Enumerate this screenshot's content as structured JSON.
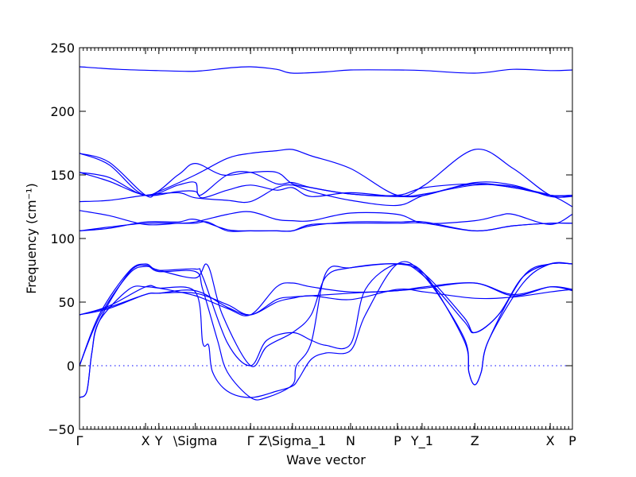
{
  "chart_data": {
    "type": "line",
    "xlabel": "Wave vector",
    "ylabel": "Frequency (cm⁻¹)",
    "ylim": [
      -50,
      250
    ],
    "yticks": [
      -50,
      0,
      50,
      100,
      150,
      200,
      250
    ],
    "xlim": [
      0,
      1
    ],
    "grid": false,
    "reference_line": {
      "y": 0,
      "style": "dotted"
    },
    "x_ticks": [
      {
        "label": "Γ",
        "x": 0.0
      },
      {
        "label": "X",
        "x": 0.134
      },
      {
        "label": "Y",
        "x": 0.161
      },
      {
        "label": "\\Sigma",
        "x": 0.235
      },
      {
        "label": "Γ",
        "x": 0.347
      },
      {
        "label": "Z\\Sigma_1",
        "x": 0.432
      },
      {
        "label": "N",
        "x": 0.55
      },
      {
        "label": "P",
        "x": 0.645
      },
      {
        "label": "Y_1",
        "x": 0.695
      },
      {
        "label": "Z",
        "x": 0.802
      },
      {
        "label": "X",
        "x": 0.955
      },
      {
        "label": "P",
        "x": 1.0
      }
    ],
    "series": [
      {
        "values": [
          [
            0,
            235
          ],
          [
            0.08,
            233
          ],
          [
            0.16,
            232
          ],
          [
            0.235,
            231.5
          ],
          [
            0.3,
            234
          ],
          [
            0.347,
            235
          ],
          [
            0.4,
            233
          ],
          [
            0.432,
            230
          ],
          [
            0.5,
            231
          ],
          [
            0.55,
            232.5
          ],
          [
            0.645,
            232.5
          ],
          [
            0.7,
            232
          ],
          [
            0.802,
            230
          ],
          [
            0.88,
            233
          ],
          [
            0.955,
            232
          ],
          [
            1,
            232.5
          ]
        ]
      },
      {
        "values": [
          [
            0,
            167
          ],
          [
            0.06,
            160
          ],
          [
            0.134,
            134
          ],
          [
            0.161,
            137
          ],
          [
            0.235,
            150
          ],
          [
            0.3,
            163
          ],
          [
            0.347,
            167
          ],
          [
            0.4,
            169
          ],
          [
            0.432,
            170
          ],
          [
            0.47,
            165
          ],
          [
            0.55,
            155
          ],
          [
            0.645,
            134
          ],
          [
            0.7,
            142
          ],
          [
            0.802,
            170
          ],
          [
            0.88,
            155
          ],
          [
            0.955,
            134
          ],
          [
            1,
            134
          ]
        ]
      },
      {
        "values": [
          [
            0,
            167
          ],
          [
            0.06,
            158
          ],
          [
            0.134,
            134
          ],
          [
            0.2,
            150
          ],
          [
            0.235,
            159
          ],
          [
            0.29,
            150
          ],
          [
            0.347,
            152
          ],
          [
            0.4,
            152
          ],
          [
            0.432,
            143
          ],
          [
            0.47,
            140
          ],
          [
            0.55,
            135
          ],
          [
            0.645,
            134
          ],
          [
            0.7,
            140
          ],
          [
            0.802,
            143
          ],
          [
            0.88,
            140
          ],
          [
            0.955,
            134
          ],
          [
            1,
            134
          ]
        ]
      },
      {
        "values": [
          [
            0,
            152
          ],
          [
            0.06,
            148
          ],
          [
            0.134,
            134
          ],
          [
            0.2,
            142
          ],
          [
            0.235,
            144
          ],
          [
            0.245,
            134
          ],
          [
            0.3,
            150
          ],
          [
            0.347,
            152
          ],
          [
            0.4,
            143
          ],
          [
            0.432,
            144
          ],
          [
            0.47,
            140
          ],
          [
            0.55,
            135
          ],
          [
            0.645,
            133
          ],
          [
            0.7,
            134
          ],
          [
            0.802,
            144
          ],
          [
            0.88,
            142
          ],
          [
            0.955,
            133
          ],
          [
            1,
            133
          ]
        ]
      },
      {
        "values": [
          [
            0,
            152
          ],
          [
            0.06,
            145
          ],
          [
            0.134,
            134
          ],
          [
            0.2,
            137
          ],
          [
            0.235,
            137
          ],
          [
            0.25,
            132
          ],
          [
            0.3,
            138
          ],
          [
            0.347,
            142
          ],
          [
            0.4,
            138
          ],
          [
            0.432,
            140
          ],
          [
            0.47,
            133
          ],
          [
            0.55,
            136
          ],
          [
            0.645,
            133
          ],
          [
            0.7,
            135
          ],
          [
            0.802,
            142
          ],
          [
            0.88,
            141
          ],
          [
            0.955,
            134
          ],
          [
            1,
            134
          ]
        ]
      },
      {
        "values": [
          [
            0,
            129
          ],
          [
            0.06,
            130
          ],
          [
            0.134,
            134
          ],
          [
            0.2,
            136
          ],
          [
            0.235,
            132
          ],
          [
            0.3,
            130
          ],
          [
            0.347,
            129
          ],
          [
            0.4,
            140
          ],
          [
            0.432,
            142
          ],
          [
            0.47,
            137
          ],
          [
            0.55,
            130
          ],
          [
            0.645,
            126
          ],
          [
            0.7,
            134
          ],
          [
            0.802,
            143
          ],
          [
            0.88,
            140
          ],
          [
            0.955,
            134
          ],
          [
            1,
            125
          ]
        ]
      },
      {
        "values": [
          [
            0,
            122
          ],
          [
            0.06,
            118
          ],
          [
            0.134,
            111
          ],
          [
            0.2,
            112
          ],
          [
            0.235,
            113
          ],
          [
            0.3,
            119
          ],
          [
            0.347,
            121
          ],
          [
            0.4,
            115
          ],
          [
            0.432,
            114
          ],
          [
            0.47,
            114
          ],
          [
            0.55,
            120
          ],
          [
            0.645,
            119
          ],
          [
            0.7,
            112
          ],
          [
            0.802,
            114
          ],
          [
            0.85,
            118
          ],
          [
            0.88,
            119
          ],
          [
            0.955,
            111
          ],
          [
            1,
            119
          ]
        ]
      },
      {
        "values": [
          [
            0,
            106
          ],
          [
            0.06,
            108
          ],
          [
            0.134,
            113
          ],
          [
            0.2,
            113
          ],
          [
            0.235,
            115
          ],
          [
            0.3,
            107
          ],
          [
            0.347,
            106
          ],
          [
            0.4,
            106
          ],
          [
            0.432,
            106
          ],
          [
            0.47,
            110
          ],
          [
            0.55,
            113
          ],
          [
            0.645,
            113
          ],
          [
            0.7,
            113
          ],
          [
            0.802,
            106
          ],
          [
            0.88,
            110
          ],
          [
            0.955,
            112
          ],
          [
            1,
            112
          ]
        ]
      },
      {
        "values": [
          [
            0,
            106
          ],
          [
            0.06,
            109
          ],
          [
            0.134,
            112
          ],
          [
            0.2,
            112
          ],
          [
            0.235,
            112
          ],
          [
            0.26,
            113
          ],
          [
            0.3,
            106
          ],
          [
            0.347,
            106
          ],
          [
            0.4,
            106
          ],
          [
            0.432,
            106
          ],
          [
            0.47,
            111
          ],
          [
            0.55,
            112
          ],
          [
            0.645,
            112
          ],
          [
            0.7,
            112
          ],
          [
            0.802,
            106
          ],
          [
            0.88,
            110
          ],
          [
            0.955,
            112
          ],
          [
            1,
            112
          ]
        ]
      },
      {
        "values": [
          [
            0,
            0
          ],
          [
            0.04,
            40
          ],
          [
            0.1,
            74
          ],
          [
            0.134,
            80
          ],
          [
            0.161,
            75
          ],
          [
            0.235,
            76
          ],
          [
            0.25,
            70
          ],
          [
            0.3,
            18
          ],
          [
            0.347,
            0
          ],
          [
            0.38,
            20
          ],
          [
            0.432,
            26
          ],
          [
            0.47,
            20
          ],
          [
            0.5,
            16
          ],
          [
            0.55,
            17
          ],
          [
            0.58,
            60
          ],
          [
            0.645,
            80
          ],
          [
            0.7,
            70
          ],
          [
            0.78,
            35
          ],
          [
            0.802,
            26
          ],
          [
            0.85,
            40
          ],
          [
            0.9,
            70
          ],
          [
            0.955,
            80
          ],
          [
            1,
            80
          ]
        ]
      },
      {
        "values": [
          [
            0,
            0
          ],
          [
            0.04,
            38
          ],
          [
            0.1,
            72
          ],
          [
            0.134,
            78
          ],
          [
            0.161,
            75
          ],
          [
            0.235,
            69
          ],
          [
            0.26,
            79
          ],
          [
            0.29,
            40
          ],
          [
            0.347,
            0
          ],
          [
            0.38,
            15
          ],
          [
            0.432,
            26
          ],
          [
            0.47,
            40
          ],
          [
            0.5,
            70
          ],
          [
            0.55,
            77
          ],
          [
            0.645,
            80
          ],
          [
            0.7,
            72
          ],
          [
            0.78,
            38
          ],
          [
            0.802,
            26
          ],
          [
            0.85,
            40
          ],
          [
            0.9,
            70
          ],
          [
            0.955,
            80
          ],
          [
            1,
            80
          ]
        ]
      },
      {
        "values": [
          [
            0,
            -25
          ],
          [
            0.015,
            -20
          ],
          [
            0.025,
            10
          ],
          [
            0.04,
            35
          ],
          [
            0.1,
            73
          ],
          [
            0.134,
            79
          ],
          [
            0.161,
            74
          ],
          [
            0.235,
            74
          ],
          [
            0.25,
            60
          ],
          [
            0.28,
            20
          ],
          [
            0.3,
            -5
          ],
          [
            0.347,
            -25
          ],
          [
            0.38,
            -25
          ],
          [
            0.432,
            -15
          ],
          [
            0.44,
            0
          ],
          [
            0.47,
            18
          ],
          [
            0.5,
            73
          ],
          [
            0.55,
            77
          ],
          [
            0.645,
            80
          ],
          [
            0.7,
            72
          ],
          [
            0.78,
            20
          ],
          [
            0.79,
            -5
          ],
          [
            0.802,
            -15
          ],
          [
            0.815,
            -5
          ],
          [
            0.83,
            20
          ],
          [
            0.9,
            70
          ],
          [
            0.955,
            80
          ],
          [
            1,
            80
          ]
        ]
      },
      {
        "values": [
          [
            0,
            -25
          ],
          [
            0.015,
            -20
          ],
          [
            0.025,
            10
          ],
          [
            0.04,
            35
          ],
          [
            0.1,
            60
          ],
          [
            0.134,
            62
          ],
          [
            0.161,
            61
          ],
          [
            0.235,
            58
          ],
          [
            0.25,
            18
          ],
          [
            0.262,
            16
          ],
          [
            0.27,
            -5
          ],
          [
            0.3,
            -20
          ],
          [
            0.347,
            -25
          ],
          [
            0.4,
            -20
          ],
          [
            0.432,
            -16
          ],
          [
            0.445,
            -10
          ],
          [
            0.47,
            5
          ],
          [
            0.5,
            10
          ],
          [
            0.55,
            12
          ],
          [
            0.58,
            40
          ],
          [
            0.645,
            80
          ],
          [
            0.7,
            70
          ],
          [
            0.78,
            22
          ],
          [
            0.79,
            -5
          ],
          [
            0.802,
            -15
          ],
          [
            0.815,
            -5
          ],
          [
            0.83,
            20
          ],
          [
            0.9,
            65
          ],
          [
            0.955,
            80
          ],
          [
            1,
            80
          ]
        ]
      },
      {
        "values": [
          [
            0,
            40
          ],
          [
            0.06,
            45
          ],
          [
            0.134,
            56
          ],
          [
            0.161,
            57
          ],
          [
            0.235,
            59
          ],
          [
            0.3,
            46
          ],
          [
            0.347,
            40
          ],
          [
            0.4,
            50
          ],
          [
            0.432,
            53
          ],
          [
            0.47,
            55
          ],
          [
            0.55,
            52
          ],
          [
            0.645,
            60
          ],
          [
            0.7,
            58
          ],
          [
            0.802,
            53
          ],
          [
            0.88,
            54
          ],
          [
            0.955,
            58
          ],
          [
            1,
            60
          ]
        ]
      },
      {
        "values": [
          [
            0,
            40
          ],
          [
            0.06,
            46
          ],
          [
            0.134,
            56
          ],
          [
            0.161,
            57
          ],
          [
            0.235,
            57
          ],
          [
            0.3,
            48
          ],
          [
            0.347,
            40
          ],
          [
            0.4,
            52
          ],
          [
            0.432,
            54
          ],
          [
            0.47,
            55
          ],
          [
            0.55,
            57
          ],
          [
            0.645,
            59
          ],
          [
            0.7,
            61
          ],
          [
            0.802,
            65
          ],
          [
            0.88,
            55
          ],
          [
            0.955,
            62
          ],
          [
            1,
            60
          ]
        ]
      },
      {
        "values": [
          [
            0,
            40
          ],
          [
            0.06,
            47
          ],
          [
            0.134,
            62
          ],
          [
            0.161,
            61
          ],
          [
            0.235,
            55
          ],
          [
            0.3,
            45
          ],
          [
            0.347,
            40
          ],
          [
            0.4,
            62
          ],
          [
            0.432,
            65
          ],
          [
            0.47,
            62
          ],
          [
            0.55,
            58
          ],
          [
            0.645,
            59
          ],
          [
            0.7,
            62
          ],
          [
            0.802,
            65
          ],
          [
            0.88,
            56
          ],
          [
            0.955,
            62
          ],
          [
            1,
            59
          ]
        ]
      }
    ]
  }
}
